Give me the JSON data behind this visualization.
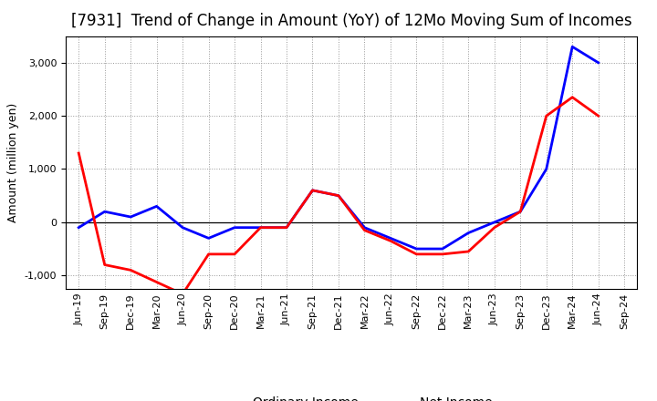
{
  "title": "[7931]  Trend of Change in Amount (YoY) of 12Mo Moving Sum of Incomes",
  "ylabel": "Amount (million yen)",
  "x_labels": [
    "Jun-19",
    "Sep-19",
    "Dec-19",
    "Mar-20",
    "Jun-20",
    "Sep-20",
    "Dec-20",
    "Mar-21",
    "Jun-21",
    "Sep-21",
    "Dec-21",
    "Mar-22",
    "Jun-22",
    "Sep-22",
    "Dec-22",
    "Mar-23",
    "Jun-23",
    "Sep-23",
    "Dec-23",
    "Mar-24",
    "Jun-24",
    "Sep-24"
  ],
  "ordinary_income_x": [
    0,
    1,
    2,
    3,
    4,
    5,
    6,
    7,
    8,
    9,
    10,
    11,
    12,
    13,
    14,
    15,
    16,
    17,
    18,
    19,
    20
  ],
  "ordinary_income_y": [
    -100,
    200,
    100,
    300,
    -100,
    -300,
    -100,
    -100,
    -100,
    600,
    500,
    -100,
    -300,
    -500,
    -500,
    -200,
    0,
    200,
    1000,
    3300,
    3000
  ],
  "net_income_x": [
    0,
    1,
    2,
    4,
    5,
    6,
    7,
    8,
    9,
    10,
    11,
    12,
    13,
    14,
    15,
    16,
    17,
    18,
    19,
    20
  ],
  "net_income_y": [
    1300,
    -800,
    -900,
    -1350,
    -600,
    -600,
    -100,
    -100,
    600,
    500,
    -150,
    -350,
    -600,
    -600,
    -550,
    -100,
    200,
    2000,
    2350,
    2000
  ],
  "ordinary_color": "#0000ff",
  "net_color": "#ff0000",
  "line_width": 2.0,
  "ylim": [
    -1250,
    3500
  ],
  "yticks": [
    -1000,
    0,
    1000,
    2000,
    3000
  ],
  "background_color": "#ffffff",
  "grid_color": "#999999",
  "title_fontsize": 12,
  "axis_label_fontsize": 9,
  "tick_fontsize": 8,
  "legend_fontsize": 10
}
